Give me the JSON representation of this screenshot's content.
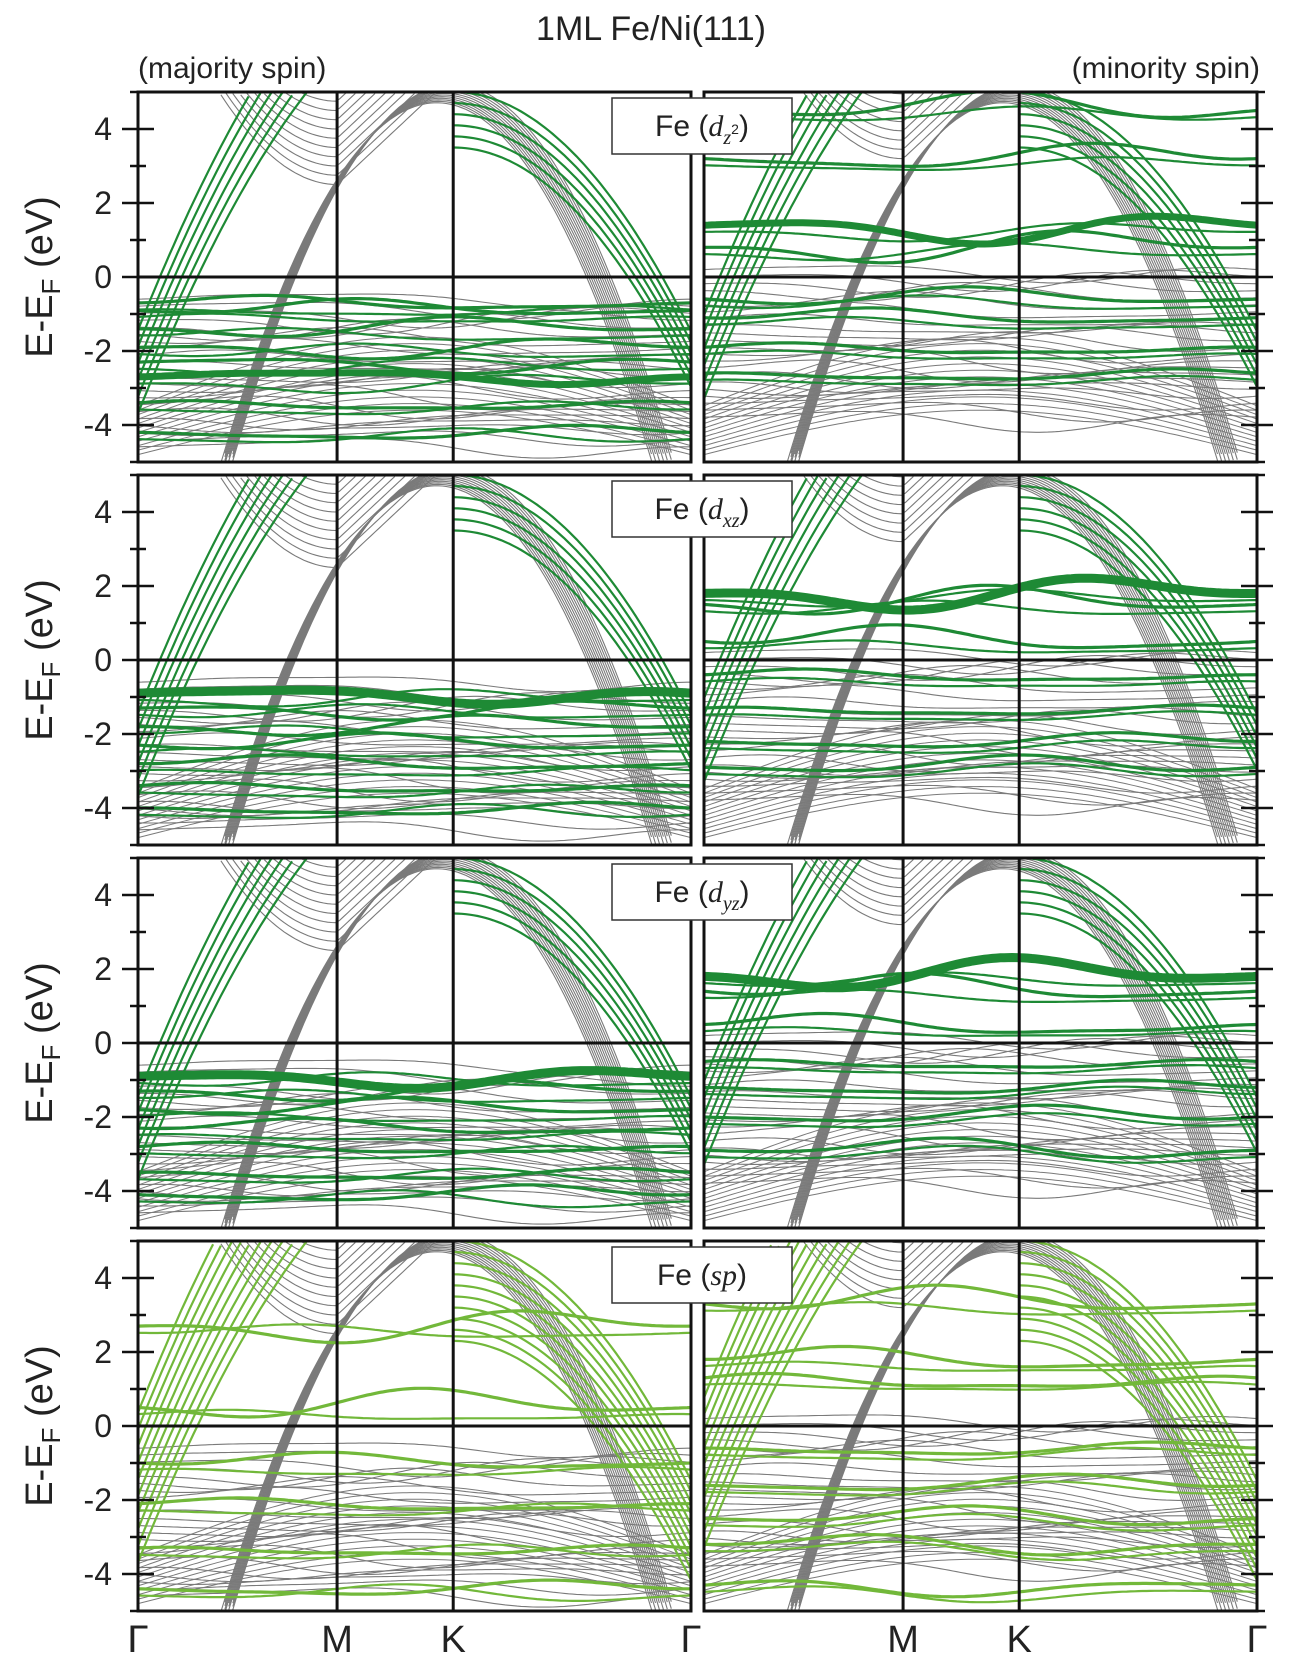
{
  "title": "1ML Fe/Ni(111)",
  "columns": [
    {
      "label": "(majority spin)"
    },
    {
      "label": "(minority spin)"
    }
  ],
  "ylabel": {
    "main": "E-E",
    "sub": "F",
    "unit": "(eV)"
  },
  "orbital_labels": [
    {
      "prefix": "Fe (",
      "base": "d",
      "sub": "z",
      "sup": "2",
      "suffix": ")"
    },
    {
      "prefix": "Fe (",
      "base": "d",
      "sub": "xz",
      "sup": "",
      "suffix": ")"
    },
    {
      "prefix": "Fe (",
      "base": "d",
      "sub": "yz",
      "sup": "",
      "suffix": ")"
    },
    {
      "prefix": "Fe (",
      "base": "sp",
      "sub": "",
      "sup": "",
      "suffix": ")"
    }
  ],
  "x_ticks": [
    "Γ",
    "M",
    "K",
    "Γ"
  ],
  "colors": {
    "bulk_band": "#7a7a7a",
    "projection_d": "#1e8a35",
    "projection_sp": "#72b83a",
    "axis": "#111111"
  },
  "chart_data": {
    "type": "line",
    "title": "1ML Fe/Ni(111)",
    "ylim": [
      -5,
      5
    ],
    "yticks": [
      -4,
      -2,
      0,
      2,
      4
    ],
    "high_symmetry_points": [
      {
        "label": "Γ",
        "k": 0.0
      },
      {
        "label": "M",
        "k": 0.36
      },
      {
        "label": "K",
        "k": 0.57
      },
      {
        "label": "Γ",
        "k": 1.0
      }
    ],
    "fermi_level": 0,
    "panels": [
      {
        "orbital": "Fe (dz2)",
        "majority_projected_energies_eV": [
          -2.7,
          -2.3,
          -1.9,
          -1.4,
          -0.9,
          -0.7,
          -3.4,
          -4.2
        ],
        "minority_projected_energies_eV": [
          1.4,
          0.8,
          -0.6,
          -1.1,
          -1.9,
          -2.6,
          3.2,
          4.5
        ]
      },
      {
        "orbital": "Fe (dxz)",
        "majority_projected_energies_eV": [
          -0.9,
          -1.3,
          -1.8,
          -2.3,
          -2.8,
          -3.4,
          -4.0
        ],
        "minority_projected_energies_eV": [
          1.8,
          1.5,
          0.5,
          -0.4,
          -1.3,
          -2.2,
          -2.9
        ]
      },
      {
        "orbital": "Fe (dyz)",
        "majority_projected_energies_eV": [
          -0.9,
          -1.3,
          -1.8,
          -2.3,
          -2.8,
          -3.5,
          -4.1
        ],
        "minority_projected_energies_eV": [
          1.8,
          1.4,
          0.5,
          -0.5,
          -1.2,
          -2.0,
          -2.9
        ]
      },
      {
        "orbital": "Fe (sp)",
        "majority_projected_energies_eV": [
          2.7,
          0.5,
          -1.0,
          -2.1,
          -3.3,
          -4.4
        ],
        "minority_projected_energies_eV": [
          3.3,
          1.8,
          1.3,
          -0.6,
          -1.6,
          -2.5,
          -3.2,
          -4.3
        ]
      }
    ]
  }
}
